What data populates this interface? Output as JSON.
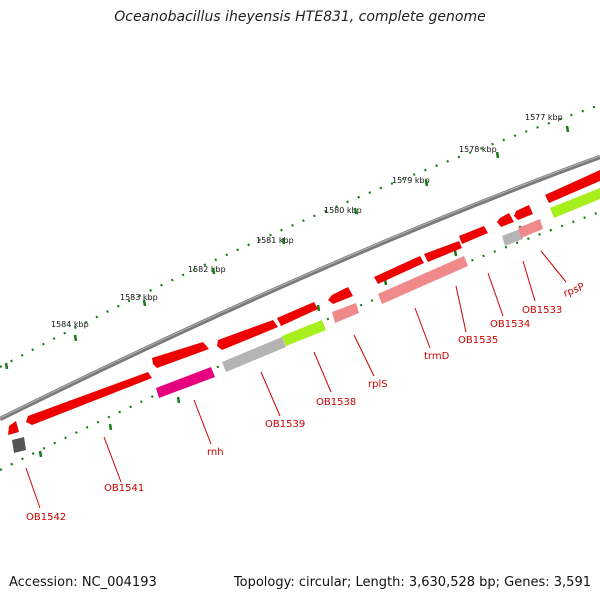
{
  "title": "Oceanobacillus iheyensis HTE831, complete genome",
  "footer": {
    "accession": "Accession: NC_004193",
    "summary": "Topology: circular; Length: 3,630,528 bp; Genes: 3,591"
  },
  "colors": {
    "backbone": "#7a7a7a",
    "tick": "#1a7a1a",
    "gene_red": "#ee0000",
    "gene_pink": "#f08a8a",
    "gene_gray": "#b4b4b4",
    "gene_dark": "#555555",
    "gene_magenta": "#e6007e",
    "gene_green": "#a6ee1c",
    "label": "#cc0000"
  },
  "kbp_labels": [
    "1577 kbp",
    "1578 kbp",
    "1579 kbp",
    "1580 kbp",
    "1581 kbp",
    "1582 kbp",
    "1583 kbp",
    "1584 kbp"
  ],
  "gene_labels": [
    "rpsP",
    "OB1533",
    "OB1534",
    "OB1535",
    "trmD",
    "rplS",
    "OB1538",
    "OB1539",
    "rnh",
    "OB1541",
    "OB1542"
  ]
}
